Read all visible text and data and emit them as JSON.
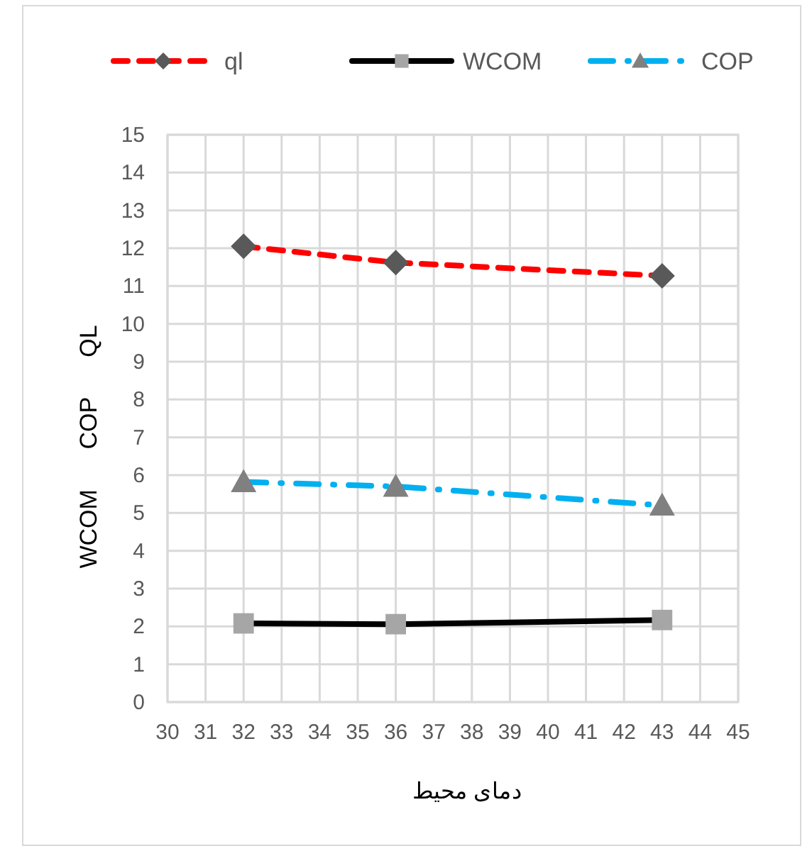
{
  "chart_data": {
    "type": "line",
    "xlabel": "دمای محیط",
    "ylabel": "WCOM      COP      QL",
    "x": [
      32,
      36,
      43
    ],
    "series": [
      {
        "name": "ql",
        "color": "#ff0000",
        "values": [
          12.05,
          11.62,
          11.27
        ],
        "marker": "diamond",
        "line_style": "dashed"
      },
      {
        "name": "WCOM",
        "color": "#000000",
        "values": [
          2.08,
          2.06,
          2.17
        ],
        "marker": "square",
        "line_style": "solid"
      },
      {
        "name": "COP",
        "color": "#00b0f0",
        "values": [
          5.82,
          5.7,
          5.2
        ],
        "marker": "triangle",
        "line_style": "dashdot"
      }
    ],
    "xlim": [
      30,
      45
    ],
    "xticks": [
      30,
      31,
      32,
      33,
      34,
      35,
      36,
      37,
      38,
      39,
      40,
      41,
      42,
      43,
      44,
      45
    ],
    "ylim": [
      0,
      15
    ],
    "yticks": [
      0,
      1,
      2,
      3,
      4,
      5,
      6,
      7,
      8,
      9,
      10,
      11,
      12,
      13,
      14,
      15
    ],
    "grid": true,
    "legend": "top"
  }
}
